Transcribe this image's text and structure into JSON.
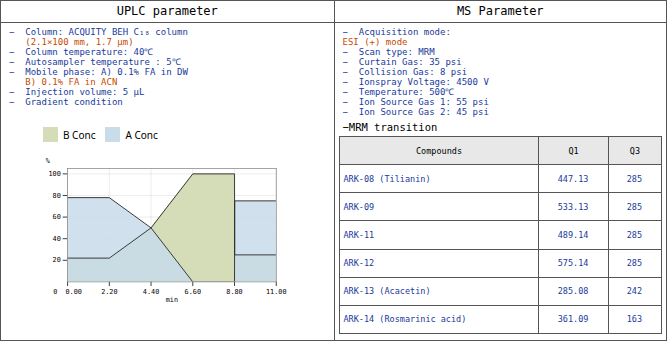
{
  "chart_data": {
    "type": "area",
    "x": [
      0.0,
      2.2,
      4.4,
      6.6,
      8.8,
      8.81,
      11.0
    ],
    "series": [
      {
        "name": "B Conc",
        "color": "#d4ddb8",
        "values": [
          22,
          22,
          50,
          100,
          100,
          25,
          25
        ]
      },
      {
        "name": "A Conc",
        "color": "#c8dcea",
        "values": [
          78,
          78,
          50,
          0,
          0,
          75,
          75
        ]
      }
    ],
    "x_label": "min",
    "y_label": "%",
    "xlim": [
      0,
      11.0
    ],
    "ylim": [
      0,
      105
    ],
    "xticks": [
      {
        "value": 0.0,
        "label": "0  0.00"
      },
      {
        "value": 2.2,
        "label": "2.20"
      },
      {
        "value": 4.4,
        "label": "4.40"
      },
      {
        "value": 6.6,
        "label": "6.60"
      },
      {
        "value": 8.8,
        "label": "8.80"
      },
      {
        "value": 11.0,
        "label": "11.00"
      }
    ],
    "yticks": [
      20,
      40,
      60,
      80,
      100
    ],
    "grid": true,
    "legend": "upper left",
    "annotations": [
      {
        "heading": "UPLC parameter",
        "lines": [
          {
            "text": "−  Column: ACQUITY BEH C₁₈ column",
            "color": "#1a3a9c"
          },
          {
            "text": "   (2.1×100 mm, 1.7 μm)",
            "color": "#c84b00"
          },
          {
            "text": "−  Column temperature: 40℃",
            "color": "#1a3a9c"
          },
          {
            "text": "−  Autosampler temperature : 5℃",
            "color": "#1a3a9c"
          },
          {
            "text": "−  Mobile phase: A) 0.1% FA in DW",
            "color": "#1a3a9c"
          },
          {
            "text": "   B) 0.1% FA in ACN",
            "color": "#c84b00"
          },
          {
            "text": "−  Injection volume: 5 μL",
            "color": "#1a3a9c"
          },
          {
            "text": "−  Gradient condition",
            "color": "#1a3a9c"
          }
        ]
      },
      {
        "heading": "MS Parameter",
        "lines": [
          {
            "text": "−  Acquisition mode:",
            "color": "#1a3a9c"
          },
          {
            "text": "ESI (+) mode",
            "color": "#c84b00"
          },
          {
            "text": "−  Scan type: MRM",
            "color": "#1a3a9c"
          },
          {
            "text": "−  Curtain Gas: 35 psi",
            "color": "#1a3a9c"
          },
          {
            "text": "−  Collision Gas: 8 psi",
            "color": "#1a3a9c"
          },
          {
            "text": "−  Ionspray Voltage: 4500 V",
            "color": "#1a3a9c"
          },
          {
            "text": "−  Temperature: 500℃",
            "color": "#1a3a9c"
          },
          {
            "text": "−  Ion Source Gas 1: 55 psi",
            "color": "#1a3a9c"
          },
          {
            "text": "−  Ion Source Gas 2: 45 psi",
            "color": "#1a3a9c"
          }
        ],
        "subheading": "−MRM transition",
        "table": {
          "header_color": "#e8e8e8",
          "text_color": "#1a3a9c",
          "headers": [
            "Compounds",
            "Q1",
            "Q3"
          ],
          "rows": [
            [
              "ARK-08 (Tilianin)",
              "447.13",
              "285"
            ],
            [
              "ARK-09",
              "533.13",
              "285"
            ],
            [
              "ARK-11",
              "489.14",
              "285"
            ],
            [
              "ARK-12",
              "575.14",
              "285"
            ],
            [
              "ARK-13 (Acacetin)",
              "285.08",
              "242"
            ],
            [
              "ARK-14 (Rosmarinic acid)",
              "361.09",
              "163"
            ]
          ]
        }
      }
    ]
  }
}
